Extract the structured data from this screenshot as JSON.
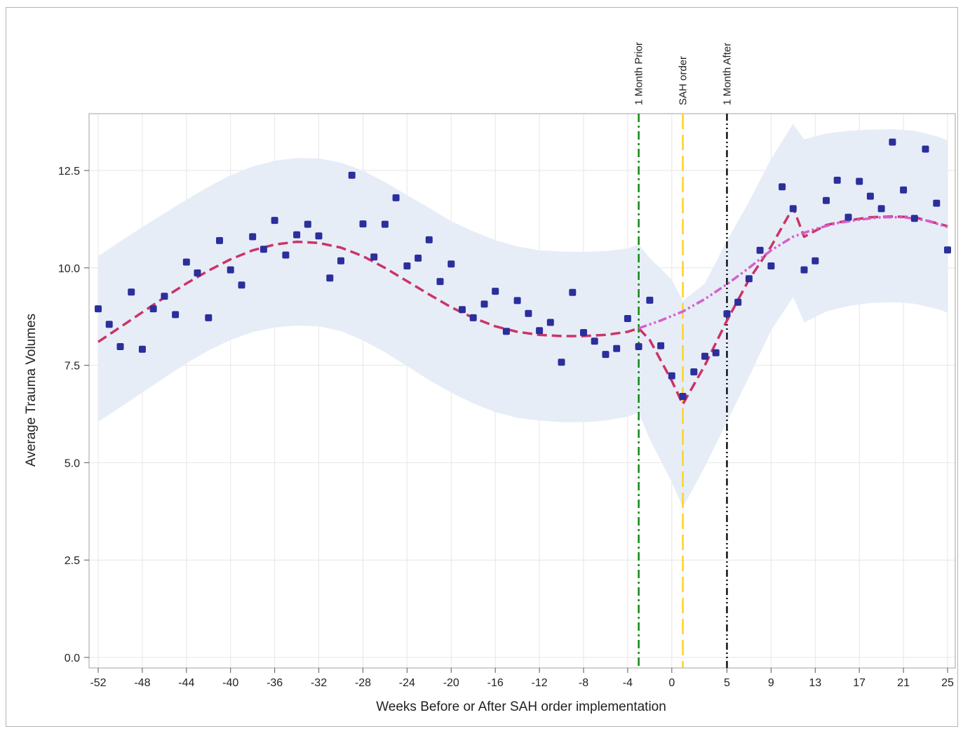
{
  "chart_data": {
    "type": "scatter",
    "title": "",
    "xlabel": "Weeks Before or After SAH order implementation",
    "ylabel": "Average Trauma Volumes",
    "xlim": [
      -52,
      25
    ],
    "ylim": [
      0,
      13.9
    ],
    "grid": true,
    "pre_period_tick_labels": [
      "-52",
      "-48",
      "-44",
      "-40",
      "-36",
      "-32",
      "-28",
      "-24",
      "-20",
      "-16",
      "-12",
      "-8",
      "-4",
      "0"
    ],
    "post_period_tick_labels": [
      "5",
      "9",
      "13",
      "17",
      "21",
      "25"
    ],
    "y_tick_labels": [
      "0.0",
      "2.5",
      "5.0",
      "7.5",
      "10.0",
      "12.5"
    ],
    "reference_lines": [
      {
        "label": "1 Month Prior",
        "x": -3,
        "color": "#118811",
        "style": "dash-dot"
      },
      {
        "label": "SAH order",
        "x": 1,
        "color": "#ffd21f",
        "style": "long-dash"
      },
      {
        "label": "1 Month After",
        "x": 5,
        "color": "#111111",
        "style": "dash-dot-dot"
      }
    ],
    "observed_points": {
      "color": "#2b2f9c",
      "x": [
        -52,
        -51,
        -50,
        -49,
        -48,
        -47,
        -46,
        -45,
        -44,
        -43,
        -42,
        -41,
        -40,
        -39,
        -38,
        -37,
        -36,
        -35,
        -34,
        -33,
        -32,
        -31,
        -30,
        -29,
        -28,
        -27,
        -26,
        -25,
        -24,
        -23,
        -22,
        -21,
        -20,
        -19,
        -18,
        -17,
        -16,
        -15,
        -14,
        -13,
        -12,
        -11,
        -10,
        -9,
        -8,
        -7,
        -6,
        -5,
        -4,
        -3,
        -2,
        -1,
        0,
        1,
        2,
        3,
        4,
        5,
        6,
        7,
        8,
        9,
        10,
        11,
        12,
        13,
        14,
        15,
        16,
        17,
        18,
        19,
        20,
        21,
        22,
        23,
        24,
        25
      ],
      "y": [
        8.95,
        8.55,
        7.98,
        9.38,
        7.91,
        8.95,
        9.27,
        8.8,
        10.15,
        9.87,
        8.72,
        10.7,
        9.95,
        9.56,
        10.8,
        10.48,
        11.22,
        10.33,
        10.85,
        11.12,
        10.82,
        9.74,
        10.18,
        12.38,
        11.13,
        10.28,
        11.12,
        11.8,
        10.05,
        10.25,
        10.72,
        9.65,
        10.1,
        8.93,
        8.72,
        9.07,
        9.4,
        8.37,
        9.16,
        8.83,
        8.39,
        8.6,
        7.58,
        9.37,
        8.34,
        8.12,
        7.78,
        7.93,
        8.7,
        7.98,
        9.17,
        8.0,
        7.23,
        6.7,
        7.33,
        7.73,
        7.82,
        8.82,
        9.12,
        9.72,
        10.45,
        10.05,
        12.08,
        11.52,
        9.95,
        10.18,
        11.73,
        12.25,
        11.3,
        12.22,
        11.84,
        11.52,
        13.23,
        12.0,
        11.27,
        13.05,
        11.66,
        10.46
      ]
    },
    "series": [
      {
        "line_type": "fitted",
        "color": "#cc3366",
        "style": "dashed",
        "x": [
          -52,
          -50,
          -48,
          -46,
          -44,
          -42,
          -40,
          -38,
          -36,
          -34,
          -32,
          -30,
          -28,
          -26,
          -24,
          -22,
          -20,
          -18,
          -16,
          -14,
          -12,
          -10,
          -8,
          -6,
          -4,
          -3,
          -2,
          0,
          1,
          3,
          5,
          7,
          9,
          11,
          12,
          14,
          16,
          18,
          20,
          22,
          24,
          25
        ],
        "y": [
          8.1,
          8.48,
          8.86,
          9.24,
          9.6,
          9.93,
          10.22,
          10.45,
          10.6,
          10.67,
          10.64,
          10.52,
          10.3,
          10.0,
          9.66,
          9.32,
          8.99,
          8.72,
          8.5,
          8.36,
          8.28,
          8.25,
          8.25,
          8.28,
          8.36,
          8.45,
          8.15,
          7.1,
          6.5,
          7.5,
          8.65,
          9.7,
          10.55,
          11.55,
          10.8,
          11.1,
          11.22,
          11.3,
          11.32,
          11.3,
          11.15,
          11.07
        ]
      },
      {
        "line_type": "counterfactual",
        "color": "#d45fce",
        "style": "dash-dot-dot",
        "x": [
          -3,
          -1,
          1,
          3,
          5,
          7,
          9,
          11,
          13,
          15,
          17,
          19,
          21,
          23,
          25
        ],
        "y": [
          8.45,
          8.65,
          8.88,
          9.2,
          9.58,
          10.0,
          10.45,
          10.8,
          11.0,
          11.15,
          11.24,
          11.3,
          11.3,
          11.22,
          11.05
        ]
      }
    ],
    "confidence_band": {
      "color": "#e6edf7",
      "x": [
        -52,
        -50,
        -48,
        -46,
        -44,
        -42,
        -40,
        -38,
        -36,
        -34,
        -32,
        -30,
        -28,
        -26,
        -24,
        -22,
        -20,
        -18,
        -16,
        -14,
        -12,
        -10,
        -8,
        -6,
        -4,
        -3,
        -2,
        0,
        1,
        3,
        5,
        7,
        9,
        11,
        12,
        14,
        16,
        18,
        20,
        22,
        24,
        25
      ],
      "upper": [
        10.3,
        10.68,
        11.05,
        11.4,
        11.75,
        12.08,
        12.38,
        12.6,
        12.75,
        12.82,
        12.81,
        12.7,
        12.5,
        12.2,
        11.87,
        11.54,
        11.2,
        10.94,
        10.71,
        10.55,
        10.45,
        10.42,
        10.41,
        10.43,
        10.5,
        10.6,
        10.25,
        9.7,
        9.15,
        9.6,
        10.7,
        11.7,
        12.8,
        13.7,
        13.3,
        13.45,
        13.52,
        13.55,
        13.56,
        13.52,
        13.38,
        13.28
      ],
      "lower": [
        6.05,
        6.42,
        6.8,
        7.18,
        7.55,
        7.88,
        8.15,
        8.35,
        8.47,
        8.52,
        8.5,
        8.38,
        8.14,
        7.83,
        7.48,
        7.12,
        6.8,
        6.52,
        6.3,
        6.15,
        6.08,
        6.04,
        6.04,
        6.08,
        6.18,
        6.28,
        5.6,
        4.5,
        3.85,
        4.9,
        6.05,
        7.2,
        8.4,
        9.25,
        8.6,
        8.88,
        9.02,
        9.1,
        9.12,
        9.08,
        8.95,
        8.85
      ]
    }
  }
}
